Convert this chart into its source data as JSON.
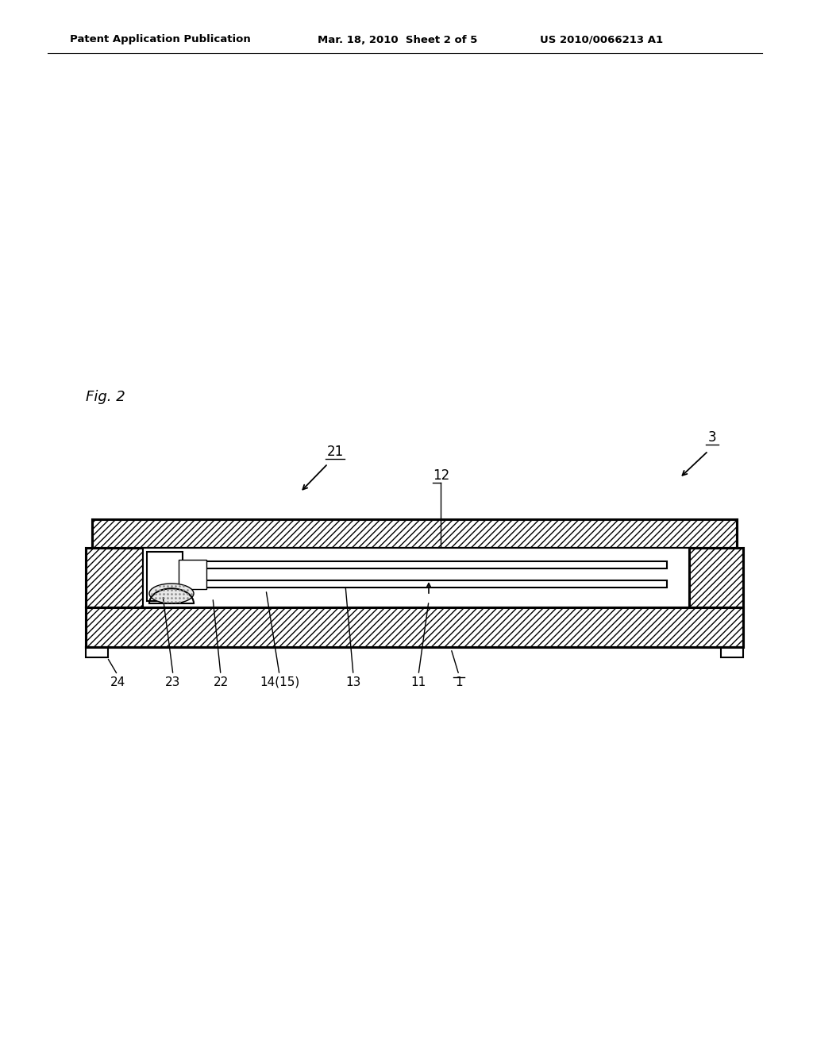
{
  "bg_color": "#ffffff",
  "header_left": "Patent Application Publication",
  "header_mid": "Mar. 18, 2010  Sheet 2 of 5",
  "header_right": "US 2010/0066213 A1",
  "fig_label": "Fig. 2",
  "label_3": "3",
  "label_21": "21",
  "label_12": "12",
  "label_24": "24",
  "label_23": "23",
  "label_22": "22",
  "label_14_15": "14(15)",
  "label_13": "13",
  "label_11": "11",
  "label_1": "1",
  "line_color": "#000000"
}
